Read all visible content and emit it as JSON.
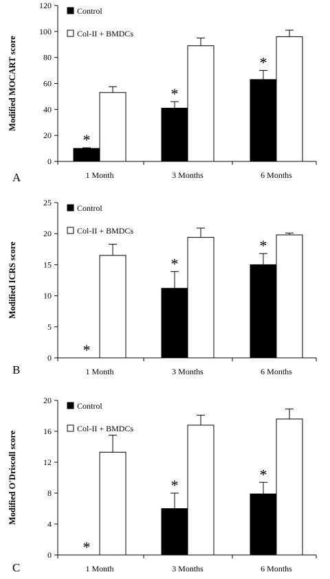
{
  "chart_data": [
    {
      "type": "bar",
      "panel": "A",
      "ylabel": "Modified MOCART score",
      "ylim": [
        0,
        120
      ],
      "yticks": [
        0,
        20,
        40,
        60,
        80,
        100,
        120
      ],
      "categories": [
        "1 Month",
        "3 Months",
        "6 Months"
      ],
      "series": [
        {
          "name": "Control",
          "color": "#000000",
          "values": [
            10,
            41,
            63
          ],
          "errors": [
            0.5,
            5,
            7
          ]
        },
        {
          "name": "Col-II + BMDCs",
          "color": "#ffffff",
          "values": [
            53,
            89,
            96
          ],
          "errors": [
            4.5,
            6,
            5
          ]
        }
      ],
      "annotations": [
        "*",
        "*",
        "*"
      ],
      "legend": "top-left"
    },
    {
      "type": "bar",
      "panel": "B",
      "ylabel": "Modified ICRS score",
      "ylim": [
        0,
        25
      ],
      "yticks": [
        0,
        5,
        10,
        15,
        20,
        25
      ],
      "categories": [
        "1 Month",
        "3 Months",
        "6 Months"
      ],
      "series": [
        {
          "name": "Control",
          "color": "#000000",
          "values": [
            0,
            11.2,
            15
          ],
          "errors": [
            0,
            2.7,
            1.8
          ]
        },
        {
          "name": "Col-II + BMDCs",
          "color": "#ffffff",
          "values": [
            16.5,
            19.4,
            19.8
          ],
          "errors": [
            1.8,
            1.5,
            0.3
          ]
        }
      ],
      "annotations": [
        "*",
        "*",
        "*"
      ],
      "legend": "top-left"
    },
    {
      "type": "bar",
      "panel": "C",
      "ylabel": "Modified O'Driscoll score",
      "ylim": [
        0,
        20
      ],
      "yticks": [
        0,
        4,
        8,
        12,
        16,
        20
      ],
      "categories": [
        "1 Month",
        "3 Months",
        "6 Months"
      ],
      "series": [
        {
          "name": "Control",
          "color": "#000000",
          "values": [
            0,
            6,
            7.9
          ],
          "errors": [
            0,
            2,
            1.5
          ]
        },
        {
          "name": "Col-II + BMDCs",
          "color": "#ffffff",
          "values": [
            13.3,
            16.8,
            17.6
          ],
          "errors": [
            2.2,
            1.3,
            1.3
          ]
        }
      ],
      "annotations": [
        "*",
        "*",
        "*"
      ],
      "legend": "top-left"
    }
  ]
}
